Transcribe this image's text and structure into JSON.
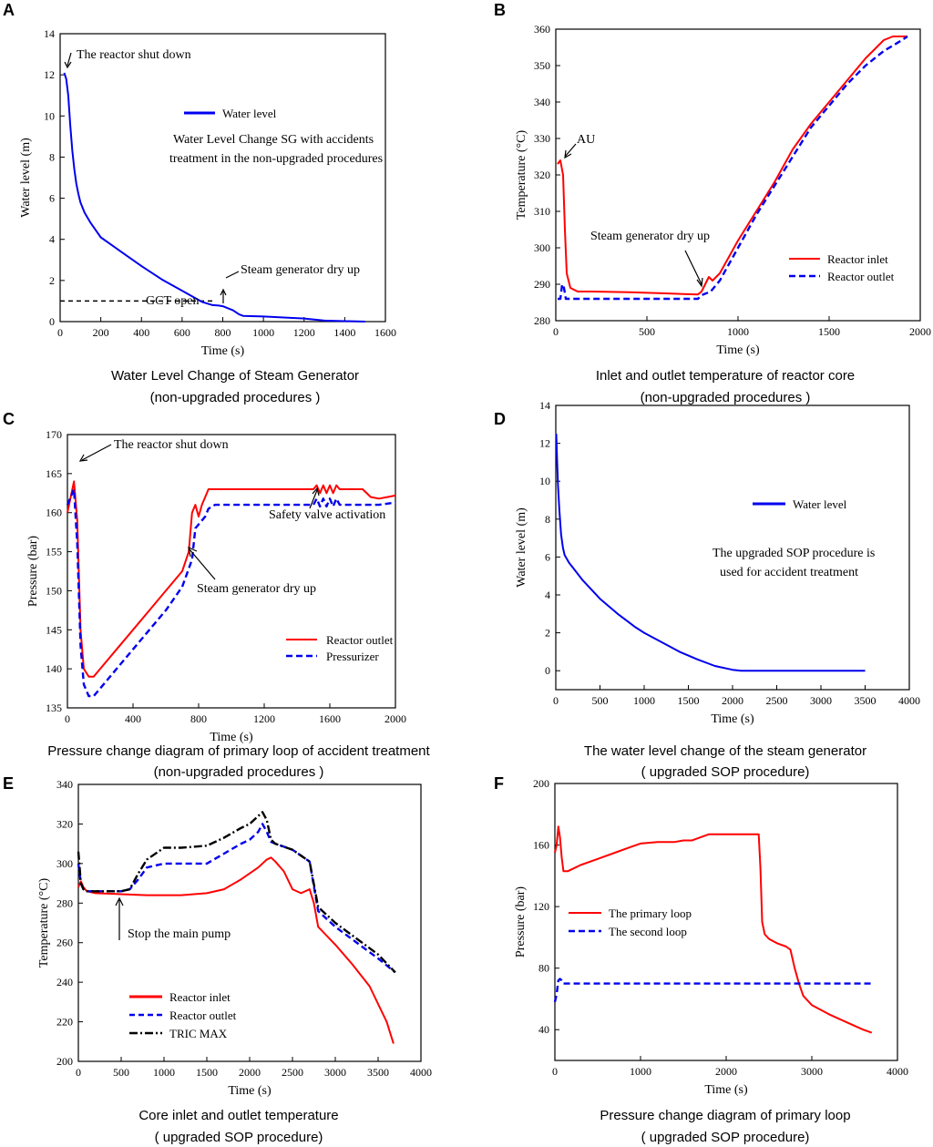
{
  "colors": {
    "red": "#ff0000",
    "blue": "#0000ee",
    "black": "#000000"
  },
  "chart_data": [
    {
      "id": "A",
      "type": "line",
      "letter": "A",
      "xlabel": "Time (s)",
      "ylabel": "Water level (m)",
      "xlim": [
        0,
        1600
      ],
      "ylim": [
        0,
        14
      ],
      "xticks": [
        0,
        200,
        400,
        600,
        800,
        1000,
        1200,
        1400,
        1600
      ],
      "yticks": [
        0,
        2,
        4,
        6,
        8,
        10,
        12,
        14
      ],
      "series": [
        {
          "name": "Water level",
          "color": "#0000ee",
          "dash": "solid",
          "x": [
            20,
            30,
            40,
            50,
            60,
            70,
            80,
            90,
            100,
            120,
            150,
            200,
            300,
            400,
            500,
            600,
            700,
            750,
            780,
            800,
            850,
            880,
            900,
            1000,
            1100,
            1200,
            1300,
            1400,
            1500
          ],
          "y": [
            12.1,
            11.8,
            11.0,
            9.5,
            8.3,
            7.4,
            6.7,
            6.2,
            5.8,
            5.3,
            4.8,
            4.1,
            3.4,
            2.7,
            2.05,
            1.5,
            0.95,
            0.8,
            0.78,
            0.75,
            0.55,
            0.35,
            0.28,
            0.25,
            0.2,
            0.15,
            0.05,
            0.02,
            0.0
          ]
        }
      ],
      "hline": {
        "y": 1.0,
        "x0": 0,
        "x1": 760,
        "style": "dashed"
      },
      "legend": [
        {
          "name": "Water level",
          "color": "#0000ee",
          "dash": "solid"
        }
      ],
      "annotations": {
        "shutdown": "The reactor shut down",
        "description_line1": "Water Level Change SG  with accidents",
        "description_line2": "treatment in the non-upgraded procedures",
        "dryup": "Steam generator dry up",
        "gct": "GCT open"
      },
      "caption_line1": "Water Level Change of Steam Generator",
      "caption_line2": "(non-upgraded procedures )"
    },
    {
      "id": "B",
      "type": "line",
      "letter": "B",
      "xlabel": "Time (s)",
      "ylabel": "Temperature (°C)",
      "xlim": [
        0,
        2000
      ],
      "ylim": [
        280,
        360
      ],
      "xticks": [
        0,
        500,
        1000,
        1500,
        2000
      ],
      "yticks": [
        280,
        290,
        300,
        310,
        320,
        330,
        340,
        350,
        360
      ],
      "series": [
        {
          "name": "Reactor inlet",
          "color": "#ff0000",
          "dash": "solid",
          "x": [
            10,
            25,
            40,
            50,
            60,
            80,
            120,
            200,
            400,
            600,
            700,
            780,
            800,
            820,
            840,
            860,
            900,
            1000,
            1100,
            1200,
            1300,
            1400,
            1500,
            1600,
            1700,
            1800,
            1850,
            1900,
            1930
          ],
          "y": [
            323,
            324,
            320,
            305,
            293,
            289,
            288,
            288,
            287.8,
            287.5,
            287.3,
            287.2,
            288,
            290,
            292,
            291,
            293,
            302,
            310,
            318,
            327,
            334,
            340,
            346,
            352,
            357,
            358,
            358,
            358
          ]
        },
        {
          "name": "Reactor outlet",
          "color": "#0000ee",
          "dash": "dashed",
          "x": [
            10,
            25,
            35,
            45,
            55,
            70,
            100,
            200,
            400,
            600,
            700,
            780,
            800,
            850,
            900,
            1000,
            1100,
            1200,
            1300,
            1400,
            1500,
            1600,
            1700,
            1800,
            1900,
            1930
          ],
          "y": [
            286,
            286,
            290,
            289,
            286,
            286,
            286,
            286,
            286,
            286,
            286,
            286,
            287,
            288,
            291,
            300,
            309,
            317,
            325,
            333,
            339,
            345,
            350,
            354,
            357,
            358
          ]
        }
      ],
      "legend": [
        {
          "name": "Reactor inlet",
          "color": "#ff0000",
          "dash": "solid"
        },
        {
          "name": "Reactor outlet",
          "color": "#0000ee",
          "dash": "dashed"
        }
      ],
      "annotations": {
        "au": "AU",
        "dryup": "Steam generator dry up"
      },
      "caption_line1": "Inlet and outlet temperature of reactor core",
      "caption_line2": "(non-upgraded procedures )"
    },
    {
      "id": "C",
      "type": "line",
      "letter": "C",
      "xlabel": "Time (s)",
      "ylabel": "Pressure (bar)",
      "xlim": [
        0,
        2000
      ],
      "ylim": [
        135,
        170
      ],
      "xticks": [
        0,
        400,
        800,
        1200,
        1600,
        2000
      ],
      "yticks": [
        135,
        140,
        145,
        150,
        155,
        160,
        165,
        170
      ],
      "series": [
        {
          "name": "Reactor outlet",
          "color": "#ff0000",
          "dash": "solid",
          "x": [
            0,
            20,
            40,
            60,
            80,
            100,
            130,
            160,
            200,
            300,
            400,
            500,
            600,
            700,
            740,
            760,
            780,
            800,
            820,
            840,
            860,
            1000,
            1200,
            1400,
            1500,
            1520,
            1540,
            1560,
            1580,
            1600,
            1620,
            1640,
            1660,
            1700,
            1800,
            1850,
            1900,
            1950,
            2000
          ],
          "y": [
            160,
            162,
            164,
            159,
            145,
            140,
            139,
            139,
            140,
            142.5,
            145,
            147.5,
            150,
            152.5,
            155,
            160,
            161,
            159.5,
            161,
            162,
            163,
            163,
            163,
            163,
            163,
            163.5,
            162.5,
            163.5,
            162.5,
            163.5,
            162.5,
            163.5,
            163,
            163,
            163,
            162,
            161.8,
            162,
            162.2
          ]
        },
        {
          "name": "Pressurizer",
          "color": "#0000ee",
          "dash": "dashed",
          "x": [
            0,
            20,
            40,
            60,
            80,
            100,
            130,
            160,
            200,
            300,
            400,
            500,
            600,
            700,
            760,
            780,
            800,
            820,
            840,
            860,
            900,
            1000,
            1200,
            1400,
            1500,
            1520,
            1540,
            1560,
            1580,
            1600,
            1620,
            1640,
            1660,
            1700,
            1800,
            1900,
            2000
          ],
          "y": [
            161,
            162,
            163,
            156,
            143,
            138,
            136.5,
            136.5,
            137.5,
            140,
            142.5,
            145,
            147.5,
            150.5,
            154,
            158,
            158.5,
            159,
            159.5,
            160.5,
            161,
            161,
            161,
            161,
            161,
            161.8,
            160.8,
            161.8,
            160.8,
            161.8,
            160.8,
            161.8,
            161,
            161,
            161,
            161,
            161.3
          ]
        }
      ],
      "legend": [
        {
          "name": "Reactor outlet",
          "color": "#ff0000",
          "dash": "solid"
        },
        {
          "name": "Pressurizer",
          "color": "#0000ee",
          "dash": "dashed"
        }
      ],
      "annotations": {
        "shutdown": "The reactor shut down",
        "safety": "Safety valve activation",
        "dryup": "Steam generator dry up"
      },
      "caption_line1": "Pressure change diagram of primary loop of accident treatment",
      "caption_line2": "(non-upgraded procedures )"
    },
    {
      "id": "D",
      "type": "line",
      "letter": "D",
      "xlabel": "Time (s)",
      "ylabel": "Water level (m)",
      "xlim": [
        0,
        4000
      ],
      "ylim": [
        -1,
        14
      ],
      "xticks": [
        0,
        500,
        1000,
        1500,
        2000,
        2500,
        3000,
        3500,
        4000
      ],
      "yticks": [
        0,
        2,
        4,
        6,
        8,
        10,
        12,
        14
      ],
      "series": [
        {
          "name": "Water level",
          "color": "#0000ee",
          "dash": "solid",
          "x": [
            5,
            15,
            25,
            40,
            60,
            80,
            100,
            150,
            200,
            300,
            400,
            500,
            600,
            700,
            800,
            900,
            1000,
            1200,
            1400,
            1600,
            1800,
            2000,
            2100,
            2500,
            3000,
            3500
          ],
          "y": [
            12.5,
            11,
            9.8,
            8.5,
            7.2,
            6.5,
            6.1,
            5.7,
            5.4,
            4.8,
            4.3,
            3.8,
            3.4,
            3.0,
            2.65,
            2.3,
            2.0,
            1.5,
            1.0,
            0.6,
            0.25,
            0.05,
            0.0,
            0.0,
            0.0,
            0.0
          ]
        }
      ],
      "legend": [
        {
          "name": "Water level",
          "color": "#0000ee",
          "dash": "solid"
        }
      ],
      "annotations": {
        "line1": "The upgraded SOP procedure is",
        "line2": "used for accident treatment"
      },
      "caption_line1": "The water level change of the steam generator",
      "caption_line2": "( upgraded SOP procedure)"
    },
    {
      "id": "E",
      "type": "line",
      "letter": "E",
      "xlabel": "Time (s)",
      "ylabel": "Temperature (°C)",
      "xlim": [
        0,
        4000
      ],
      "ylim": [
        200,
        340
      ],
      "xticks": [
        0,
        500,
        1000,
        1500,
        2000,
        2500,
        3000,
        3500,
        4000
      ],
      "yticks": [
        200,
        220,
        240,
        260,
        280,
        300,
        320,
        340
      ],
      "series": [
        {
          "name": "Reactor inlet",
          "color": "#ff0000",
          "dash": "solid",
          "x": [
            0,
            30,
            60,
            100,
            200,
            500,
            800,
            1000,
            1200,
            1500,
            1700,
            1900,
            2100,
            2200,
            2250,
            2300,
            2400,
            2500,
            2600,
            2700,
            2750,
            2800,
            3000,
            3200,
            3400,
            3600,
            3680
          ],
          "y": [
            288,
            291,
            288,
            286,
            285,
            284.5,
            284,
            284,
            284,
            285,
            287,
            292,
            298,
            302,
            303,
            301,
            296,
            287,
            285,
            287,
            280,
            268,
            259,
            249,
            238,
            220,
            209
          ]
        },
        {
          "name": "Reactor outlet",
          "color": "#0000ee",
          "dash": "dashed",
          "x": [
            0,
            30,
            60,
            100,
            200,
            500,
            600,
            700,
            800,
            1000,
            1200,
            1500,
            1700,
            1900,
            2000,
            2100,
            2150,
            2200,
            2250,
            2300,
            2500,
            2700,
            2800,
            3000,
            3500,
            3700
          ],
          "y": [
            300,
            290,
            287,
            286,
            286,
            286,
            287,
            292,
            298,
            300,
            300,
            300,
            305,
            310,
            312,
            316,
            320,
            316,
            311,
            310,
            307,
            301,
            276,
            268,
            252,
            245
          ]
        },
        {
          "name": "TRIC MAX",
          "color": "#000000",
          "dash": "dashdot",
          "x": [
            0,
            30,
            60,
            100,
            200,
            500,
            600,
            700,
            800,
            1000,
            1200,
            1500,
            1700,
            1900,
            2000,
            2100,
            2150,
            2200,
            2250,
            2300,
            2500,
            2700,
            2800,
            3000,
            3500,
            3700
          ],
          "y": [
            306,
            290,
            287,
            286,
            286,
            286,
            287,
            295,
            302,
            308,
            308,
            309,
            313,
            318,
            320,
            324,
            326,
            322,
            312,
            310,
            307,
            301,
            278,
            270,
            254,
            245
          ]
        }
      ],
      "legend": [
        {
          "name": "Reactor inlet",
          "color": "#ff0000",
          "dash": "solid"
        },
        {
          "name": "Reactor outlet",
          "color": "#0000ee",
          "dash": "dashed"
        },
        {
          "name": "TRIC MAX",
          "color": "#000000",
          "dash": "dashdot"
        }
      ],
      "annotations": {
        "pump": "Stop the main pump"
      },
      "caption_line1": "Core inlet and outlet temperature",
      "caption_line2": "( upgraded SOP procedure)"
    },
    {
      "id": "F",
      "type": "line",
      "letter": "F",
      "xlabel": "Time (s)",
      "ylabel": "Pressure (bar)",
      "xlim": [
        0,
        4000
      ],
      "ylim": [
        20,
        200
      ],
      "xticks": [
        0,
        1000,
        2000,
        3000,
        4000
      ],
      "yticks": [
        40,
        80,
        120,
        160,
        200
      ],
      "series": [
        {
          "name": "The primary loop",
          "color": "#ff0000",
          "dash": "solid",
          "x": [
            0,
            20,
            40,
            60,
            80,
            100,
            150,
            300,
            500,
            700,
            900,
            1000,
            1200,
            1400,
            1500,
            1600,
            1700,
            1800,
            2000,
            2200,
            2300,
            2380,
            2400,
            2420,
            2450,
            2500,
            2600,
            2700,
            2750,
            2800,
            2850,
            2900,
            3000,
            3200,
            3400,
            3600,
            3700
          ],
          "y": [
            155,
            160,
            172,
            165,
            152,
            143,
            143,
            147,
            151,
            155,
            159,
            161,
            162,
            162,
            163,
            163,
            165,
            167,
            167,
            167,
            167,
            167,
            145,
            110,
            102,
            99,
            96,
            94,
            92,
            80,
            70,
            62,
            56,
            50,
            45,
            40,
            38
          ]
        },
        {
          "name": "The second loop",
          "color": "#0000ee",
          "dash": "dashed",
          "x": [
            0,
            20,
            40,
            60,
            80,
            100,
            150,
            300,
            1000,
            2000,
            3000,
            3700
          ],
          "y": [
            58,
            63,
            72,
            73,
            72,
            70,
            70,
            70,
            70,
            70,
            70,
            70
          ]
        }
      ],
      "legend": [
        {
          "name": "The primary loop",
          "color": "#ff0000",
          "dash": "solid"
        },
        {
          "name": "The second loop",
          "color": "#0000ee",
          "dash": "dashed"
        }
      ],
      "annotations": {},
      "caption_line1": "Pressure change diagram of primary loop",
      "caption_line2": "( upgraded SOP procedure)"
    }
  ]
}
